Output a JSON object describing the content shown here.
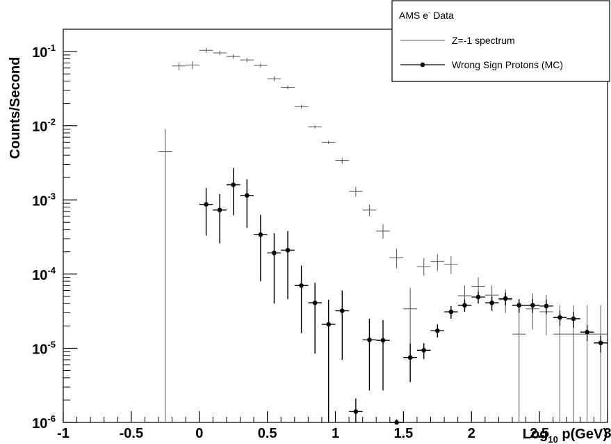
{
  "chart_data": {
    "type": "scatter",
    "xlabel": {
      "main": "Log",
      "sub": "10",
      "rest": " p(GeV)"
    },
    "ylabel": "Counts/Second",
    "xlim": [
      -1,
      3
    ],
    "ylim": [
      1e-06,
      0.2
    ],
    "yscale": "log",
    "grid": false,
    "legend_position": "top-right",
    "legend": {
      "header": {
        "main": "AMS e",
        "sup": "-",
        "rest": " Data"
      },
      "entries": [
        "Z=-1 spectrum",
        "Wrong Sign Protons (MC)"
      ]
    },
    "x_ticks": [
      {
        "v": -1,
        "label": "-1"
      },
      {
        "v": -0.5,
        "label": "-0.5"
      },
      {
        "v": 0,
        "label": "0"
      },
      {
        "v": 0.5,
        "label": "0.5"
      },
      {
        "v": 1,
        "label": "1"
      },
      {
        "v": 1.5,
        "label": "1.5"
      },
      {
        "v": 2,
        "label": "2"
      },
      {
        "v": 2.5,
        "label": "2.5"
      },
      {
        "v": 3,
        "label": "3"
      }
    ],
    "y_ticks": [
      {
        "v": 1e-06,
        "base": "10",
        "exp": "-6"
      },
      {
        "v": 1e-05,
        "base": "10",
        "exp": "-5"
      },
      {
        "v": 0.0001,
        "base": "10",
        "exp": "-4"
      },
      {
        "v": 0.001,
        "base": "10",
        "exp": "-3"
      },
      {
        "v": 0.01,
        "base": "10",
        "exp": "-2"
      },
      {
        "v": 0.1,
        "base": "10",
        "exp": "-1"
      }
    ],
    "series": [
      {
        "name": "Z=-1 spectrum",
        "marker": "none",
        "color": "#555555",
        "bin_halfwidth": 0.05,
        "points": [
          {
            "x": -0.25,
            "y": 0.0045,
            "lo": 1e-06,
            "hi": 0.009
          },
          {
            "x": -0.15,
            "y": 0.064,
            "lo": 0.056,
            "hi": 0.072
          },
          {
            "x": -0.05,
            "y": 0.066,
            "lo": 0.058,
            "hi": 0.074
          },
          {
            "x": 0.05,
            "y": 0.104,
            "lo": 0.096,
            "hi": 0.112
          },
          {
            "x": 0.15,
            "y": 0.096,
            "lo": 0.089,
            "hi": 0.103
          },
          {
            "x": 0.25,
            "y": 0.086,
            "lo": 0.08,
            "hi": 0.092
          },
          {
            "x": 0.35,
            "y": 0.077,
            "lo": 0.072,
            "hi": 0.082
          },
          {
            "x": 0.45,
            "y": 0.065,
            "lo": 0.061,
            "hi": 0.069
          },
          {
            "x": 0.55,
            "y": 0.043,
            "lo": 0.04,
            "hi": 0.046
          },
          {
            "x": 0.65,
            "y": 0.033,
            "lo": 0.031,
            "hi": 0.035
          },
          {
            "x": 0.75,
            "y": 0.018,
            "lo": 0.017,
            "hi": 0.019
          },
          {
            "x": 0.85,
            "y": 0.0097,
            "lo": 0.0092,
            "hi": 0.0102
          },
          {
            "x": 0.95,
            "y": 0.006,
            "lo": 0.0057,
            "hi": 0.0063
          },
          {
            "x": 1.05,
            "y": 0.0034,
            "lo": 0.0031,
            "hi": 0.0037
          },
          {
            "x": 1.15,
            "y": 0.0013,
            "lo": 0.0011,
            "hi": 0.0015
          },
          {
            "x": 1.25,
            "y": 0.00073,
            "lo": 0.0006,
            "hi": 0.00086
          },
          {
            "x": 1.35,
            "y": 0.00038,
            "lo": 0.0003,
            "hi": 0.00047
          },
          {
            "x": 1.45,
            "y": 0.000165,
            "lo": 0.00012,
            "hi": 0.00022
          },
          {
            "x": 1.55,
            "y": 3.4e-05,
            "lo": 8e-06,
            "hi": 6.5e-05
          },
          {
            "x": 1.65,
            "y": 0.000125,
            "lo": 9.5e-05,
            "hi": 0.000165
          },
          {
            "x": 1.75,
            "y": 0.000148,
            "lo": 0.00011,
            "hi": 0.000185
          },
          {
            "x": 1.85,
            "y": 0.000135,
            "lo": 0.0001,
            "hi": 0.000175
          },
          {
            "x": 1.95,
            "y": 5.1e-05,
            "lo": 3.5e-05,
            "hi": 7e-05
          },
          {
            "x": 2.05,
            "y": 6.8e-05,
            "lo": 5e-05,
            "hi": 9e-05
          },
          {
            "x": 2.15,
            "y": 5.2e-05,
            "lo": 3.6e-05,
            "hi": 7e-05
          },
          {
            "x": 2.25,
            "y": 4.5e-05,
            "lo": 3e-05,
            "hi": 6.2e-05
          },
          {
            "x": 2.35,
            "y": 1.55e-05,
            "lo": 1e-06,
            "hi": 3.8e-05
          },
          {
            "x": 2.45,
            "y": 3.4e-05,
            "lo": 1.8e-05,
            "hi": 5.5e-05
          },
          {
            "x": 2.55,
            "y": 3.1e-05,
            "lo": 1.5e-05,
            "hi": 5.2e-05
          },
          {
            "x": 2.65,
            "y": 1.55e-05,
            "lo": 1e-06,
            "hi": 3.8e-05
          },
          {
            "x": 2.75,
            "y": 1.55e-05,
            "lo": 1e-06,
            "hi": 3.8e-05
          },
          {
            "x": 2.85,
            "y": 1.55e-05,
            "lo": 1e-06,
            "hi": 3.8e-05
          },
          {
            "x": 2.95,
            "y": 1.55e-05,
            "lo": 1e-06,
            "hi": 3.8e-05
          }
        ]
      },
      {
        "name": "Wrong Sign Protons (MC)",
        "marker": "dot",
        "color": "#000000",
        "bin_halfwidth": 0.05,
        "points": [
          {
            "x": 0.05,
            "y": 0.00087,
            "lo": 0.00033,
            "hi": 0.00145
          },
          {
            "x": 0.15,
            "y": 0.00073,
            "lo": 0.00026,
            "hi": 0.0012
          },
          {
            "x": 0.25,
            "y": 0.0016,
            "lo": 0.00062,
            "hi": 0.0027
          },
          {
            "x": 0.35,
            "y": 0.00115,
            "lo": 0.00042,
            "hi": 0.0019
          },
          {
            "x": 0.45,
            "y": 0.00034,
            "lo": 8e-05,
            "hi": 0.00063
          },
          {
            "x": 0.55,
            "y": 0.000193,
            "lo": 4e-05,
            "hi": 0.000355
          },
          {
            "x": 0.65,
            "y": 0.00021,
            "lo": 4.6e-05,
            "hi": 0.00038
          },
          {
            "x": 0.75,
            "y": 7e-05,
            "lo": 1.6e-05,
            "hi": 0.00013
          },
          {
            "x": 0.85,
            "y": 4.1e-05,
            "lo": 8.5e-06,
            "hi": 7.6e-05
          },
          {
            "x": 0.95,
            "y": 2.1e-05,
            "lo": 1e-06,
            "hi": 4.5e-05
          },
          {
            "x": 1.05,
            "y": 3.2e-05,
            "lo": 7e-06,
            "hi": 6e-05
          },
          {
            "x": 1.15,
            "y": 1.4e-06,
            "lo": 1e-06,
            "hi": 2.1e-06
          },
          {
            "x": 1.25,
            "y": 1.3e-05,
            "lo": 2.7e-06,
            "hi": 2.5e-05
          },
          {
            "x": 1.35,
            "y": 1.28e-05,
            "lo": 2.7e-06,
            "hi": 2.4e-05
          },
          {
            "x": 1.45,
            "y": 1e-06,
            "lo": 1e-06,
            "hi": 1.1e-06
          },
          {
            "x": 1.55,
            "y": 7.5e-06,
            "lo": 3.5e-06,
            "hi": 1.15e-05
          },
          {
            "x": 1.65,
            "y": 9.4e-06,
            "lo": 7.2e-06,
            "hi": 1.17e-05
          },
          {
            "x": 1.75,
            "y": 1.72e-05,
            "lo": 1.4e-05,
            "hi": 2.1e-05
          },
          {
            "x": 1.85,
            "y": 3.1e-05,
            "lo": 2.5e-05,
            "hi": 3.7e-05
          },
          {
            "x": 1.95,
            "y": 3.8e-05,
            "lo": 3.1e-05,
            "hi": 4.5e-05
          },
          {
            "x": 2.05,
            "y": 4.9e-05,
            "lo": 4e-05,
            "hi": 5.8e-05
          },
          {
            "x": 2.15,
            "y": 4.1e-05,
            "lo": 3.2e-05,
            "hi": 5e-05
          },
          {
            "x": 2.25,
            "y": 4.7e-05,
            "lo": 3.8e-05,
            "hi": 5.6e-05
          },
          {
            "x": 2.35,
            "y": 3.8e-05,
            "lo": 3e-05,
            "hi": 4.6e-05
          },
          {
            "x": 2.45,
            "y": 3.8e-05,
            "lo": 3e-05,
            "hi": 4.6e-05
          },
          {
            "x": 2.55,
            "y": 3.7e-05,
            "lo": 2.9e-05,
            "hi": 4.5e-05
          },
          {
            "x": 2.65,
            "y": 2.6e-05,
            "lo": 2e-05,
            "hi": 3.2e-05
          },
          {
            "x": 2.75,
            "y": 2.5e-05,
            "lo": 1.9e-05,
            "hi": 3.1e-05
          },
          {
            "x": 2.85,
            "y": 1.65e-05,
            "lo": 1.25e-05,
            "hi": 2.05e-05
          },
          {
            "x": 2.95,
            "y": 1.18e-05,
            "lo": 8.8e-06,
            "hi": 1.48e-05
          }
        ]
      }
    ]
  }
}
